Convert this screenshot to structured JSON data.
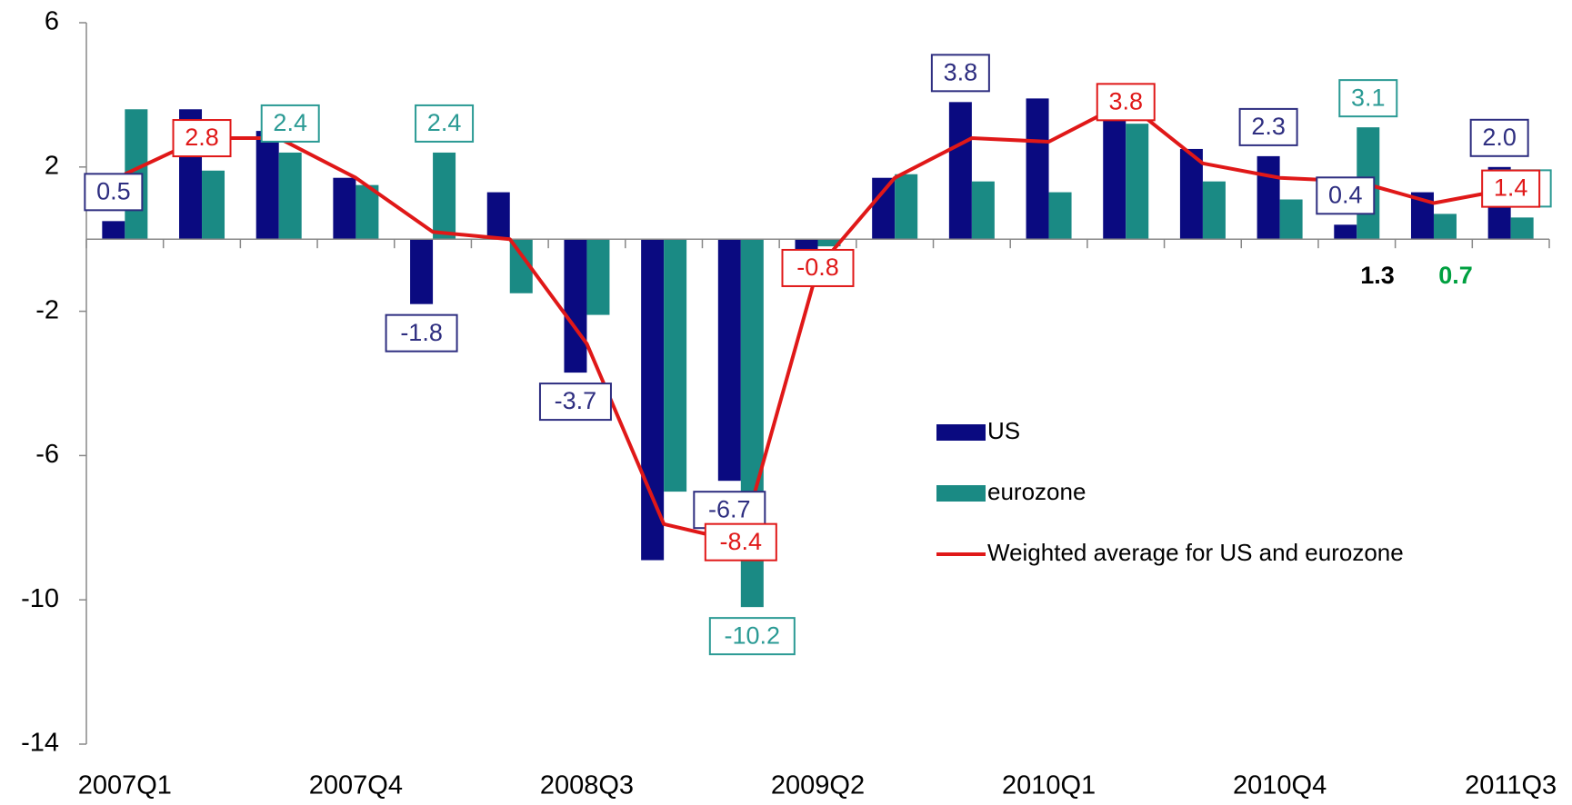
{
  "chart_data": {
    "type": "bar",
    "categories": [
      "2007Q1",
      null,
      null,
      "2007Q4",
      null,
      null,
      "2008Q3",
      null,
      null,
      "2009Q2",
      null,
      null,
      "2010Q1",
      null,
      null,
      "2010Q4",
      null,
      null,
      "2011Q3"
    ],
    "ylim": [
      -14,
      6
    ],
    "yticks": [
      -14,
      -10,
      -6,
      -2,
      2,
      6
    ],
    "series": [
      {
        "name": "US",
        "color": "#0a0a80",
        "border": "#2e2e80",
        "label_color": "#2e2e80",
        "values": [
          0.5,
          3.6,
          3.0,
          1.7,
          -1.8,
          1.3,
          -3.7,
          -8.9,
          -6.7,
          -0.3,
          1.7,
          3.8,
          3.9,
          3.4,
          2.5,
          2.3,
          0.4,
          1.3,
          2.0
        ],
        "value_labels": [
          "0.5",
          null,
          null,
          null,
          "-1.8",
          null,
          "-3.7",
          null,
          "-6.7",
          null,
          null,
          "3.8",
          null,
          null,
          null,
          "2.3",
          "0.4",
          null,
          "2.0"
        ]
      },
      {
        "name": "eurozone",
        "color": "#1a8a84",
        "border": "#2a9a94",
        "label_color": "#2a9a94",
        "values": [
          3.6,
          1.9,
          2.4,
          1.5,
          2.4,
          -1.5,
          -2.1,
          -7.0,
          -10.2,
          -0.2,
          1.8,
          1.6,
          1.3,
          3.2,
          1.6,
          1.1,
          3.1,
          0.7,
          0.6
        ],
        "value_labels": [
          null,
          null,
          "2.4",
          null,
          "2.4",
          null,
          null,
          null,
          "-10.2",
          null,
          null,
          null,
          null,
          null,
          null,
          null,
          "3.1",
          null,
          "0.6"
        ]
      },
      {
        "name": "Weighted average for US and eurozone",
        "type": "line",
        "color": "#e01818",
        "border": "#e01818",
        "label_color": "#e01818",
        "values": [
          1.8,
          2.8,
          2.8,
          1.7,
          0.2,
          0.0,
          -2.9,
          -7.9,
          -8.4,
          -0.8,
          1.7,
          2.8,
          2.7,
          3.8,
          2.1,
          1.7,
          1.6,
          1.0,
          1.4
        ],
        "value_labels": [
          null,
          "2.8",
          null,
          null,
          null,
          null,
          null,
          null,
          "-8.4",
          "-0.8",
          null,
          null,
          null,
          "3.8",
          null,
          null,
          null,
          null,
          "1.4"
        ]
      }
    ],
    "annotations": [
      {
        "text": "1.3",
        "color": "#000000"
      },
      {
        "text": "0.7",
        "color": "#00a040"
      }
    ]
  }
}
